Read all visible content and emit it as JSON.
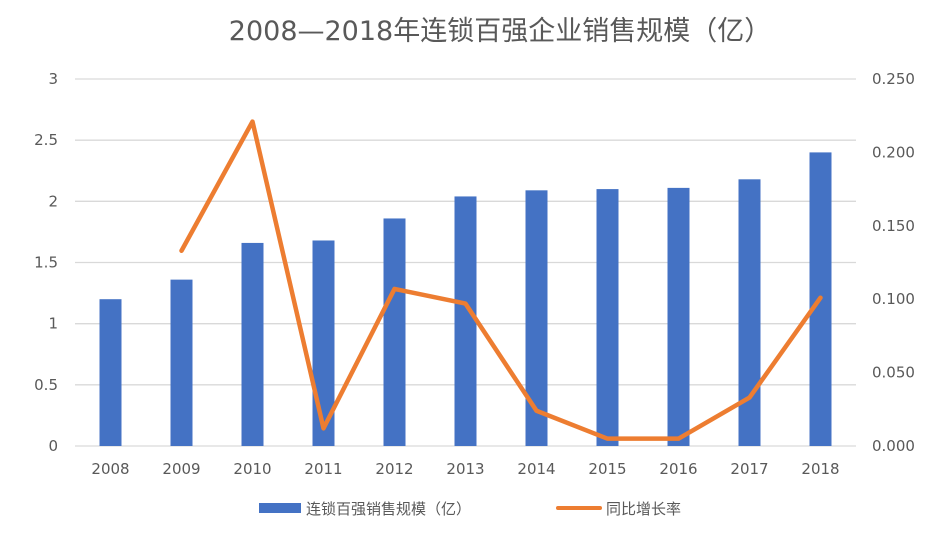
{
  "chart_data": {
    "type": "bar+line",
    "title": "2008—2018年连锁百强企业销售规模（亿）",
    "categories": [
      "2008",
      "2009",
      "2010",
      "2011",
      "2012",
      "2013",
      "2014",
      "2015",
      "2016",
      "2017",
      "2018"
    ],
    "series": [
      {
        "name": "连锁百强销售规模（亿）",
        "type": "bar",
        "axis": "left",
        "color": "#4472C4",
        "values": [
          1.2,
          1.36,
          1.66,
          1.68,
          1.86,
          2.04,
          2.09,
          2.1,
          2.11,
          2.18,
          2.4
        ]
      },
      {
        "name": "同比增长率",
        "type": "line",
        "axis": "right",
        "color": "#ED7D31",
        "values": [
          null,
          0.133,
          0.221,
          0.012,
          0.107,
          0.097,
          0.024,
          0.005,
          0.005,
          0.033,
          0.101
        ]
      }
    ],
    "y_left": {
      "min": 0,
      "max": 3,
      "ticks": [
        "0",
        "0.5",
        "1",
        "1.5",
        "2",
        "2.5",
        "3"
      ]
    },
    "y_right": {
      "min": 0,
      "max": 0.25,
      "ticks": [
        "0.000",
        "0.050",
        "0.100",
        "0.150",
        "0.200",
        "0.250"
      ]
    },
    "grid": true,
    "legend_position": "bottom"
  }
}
